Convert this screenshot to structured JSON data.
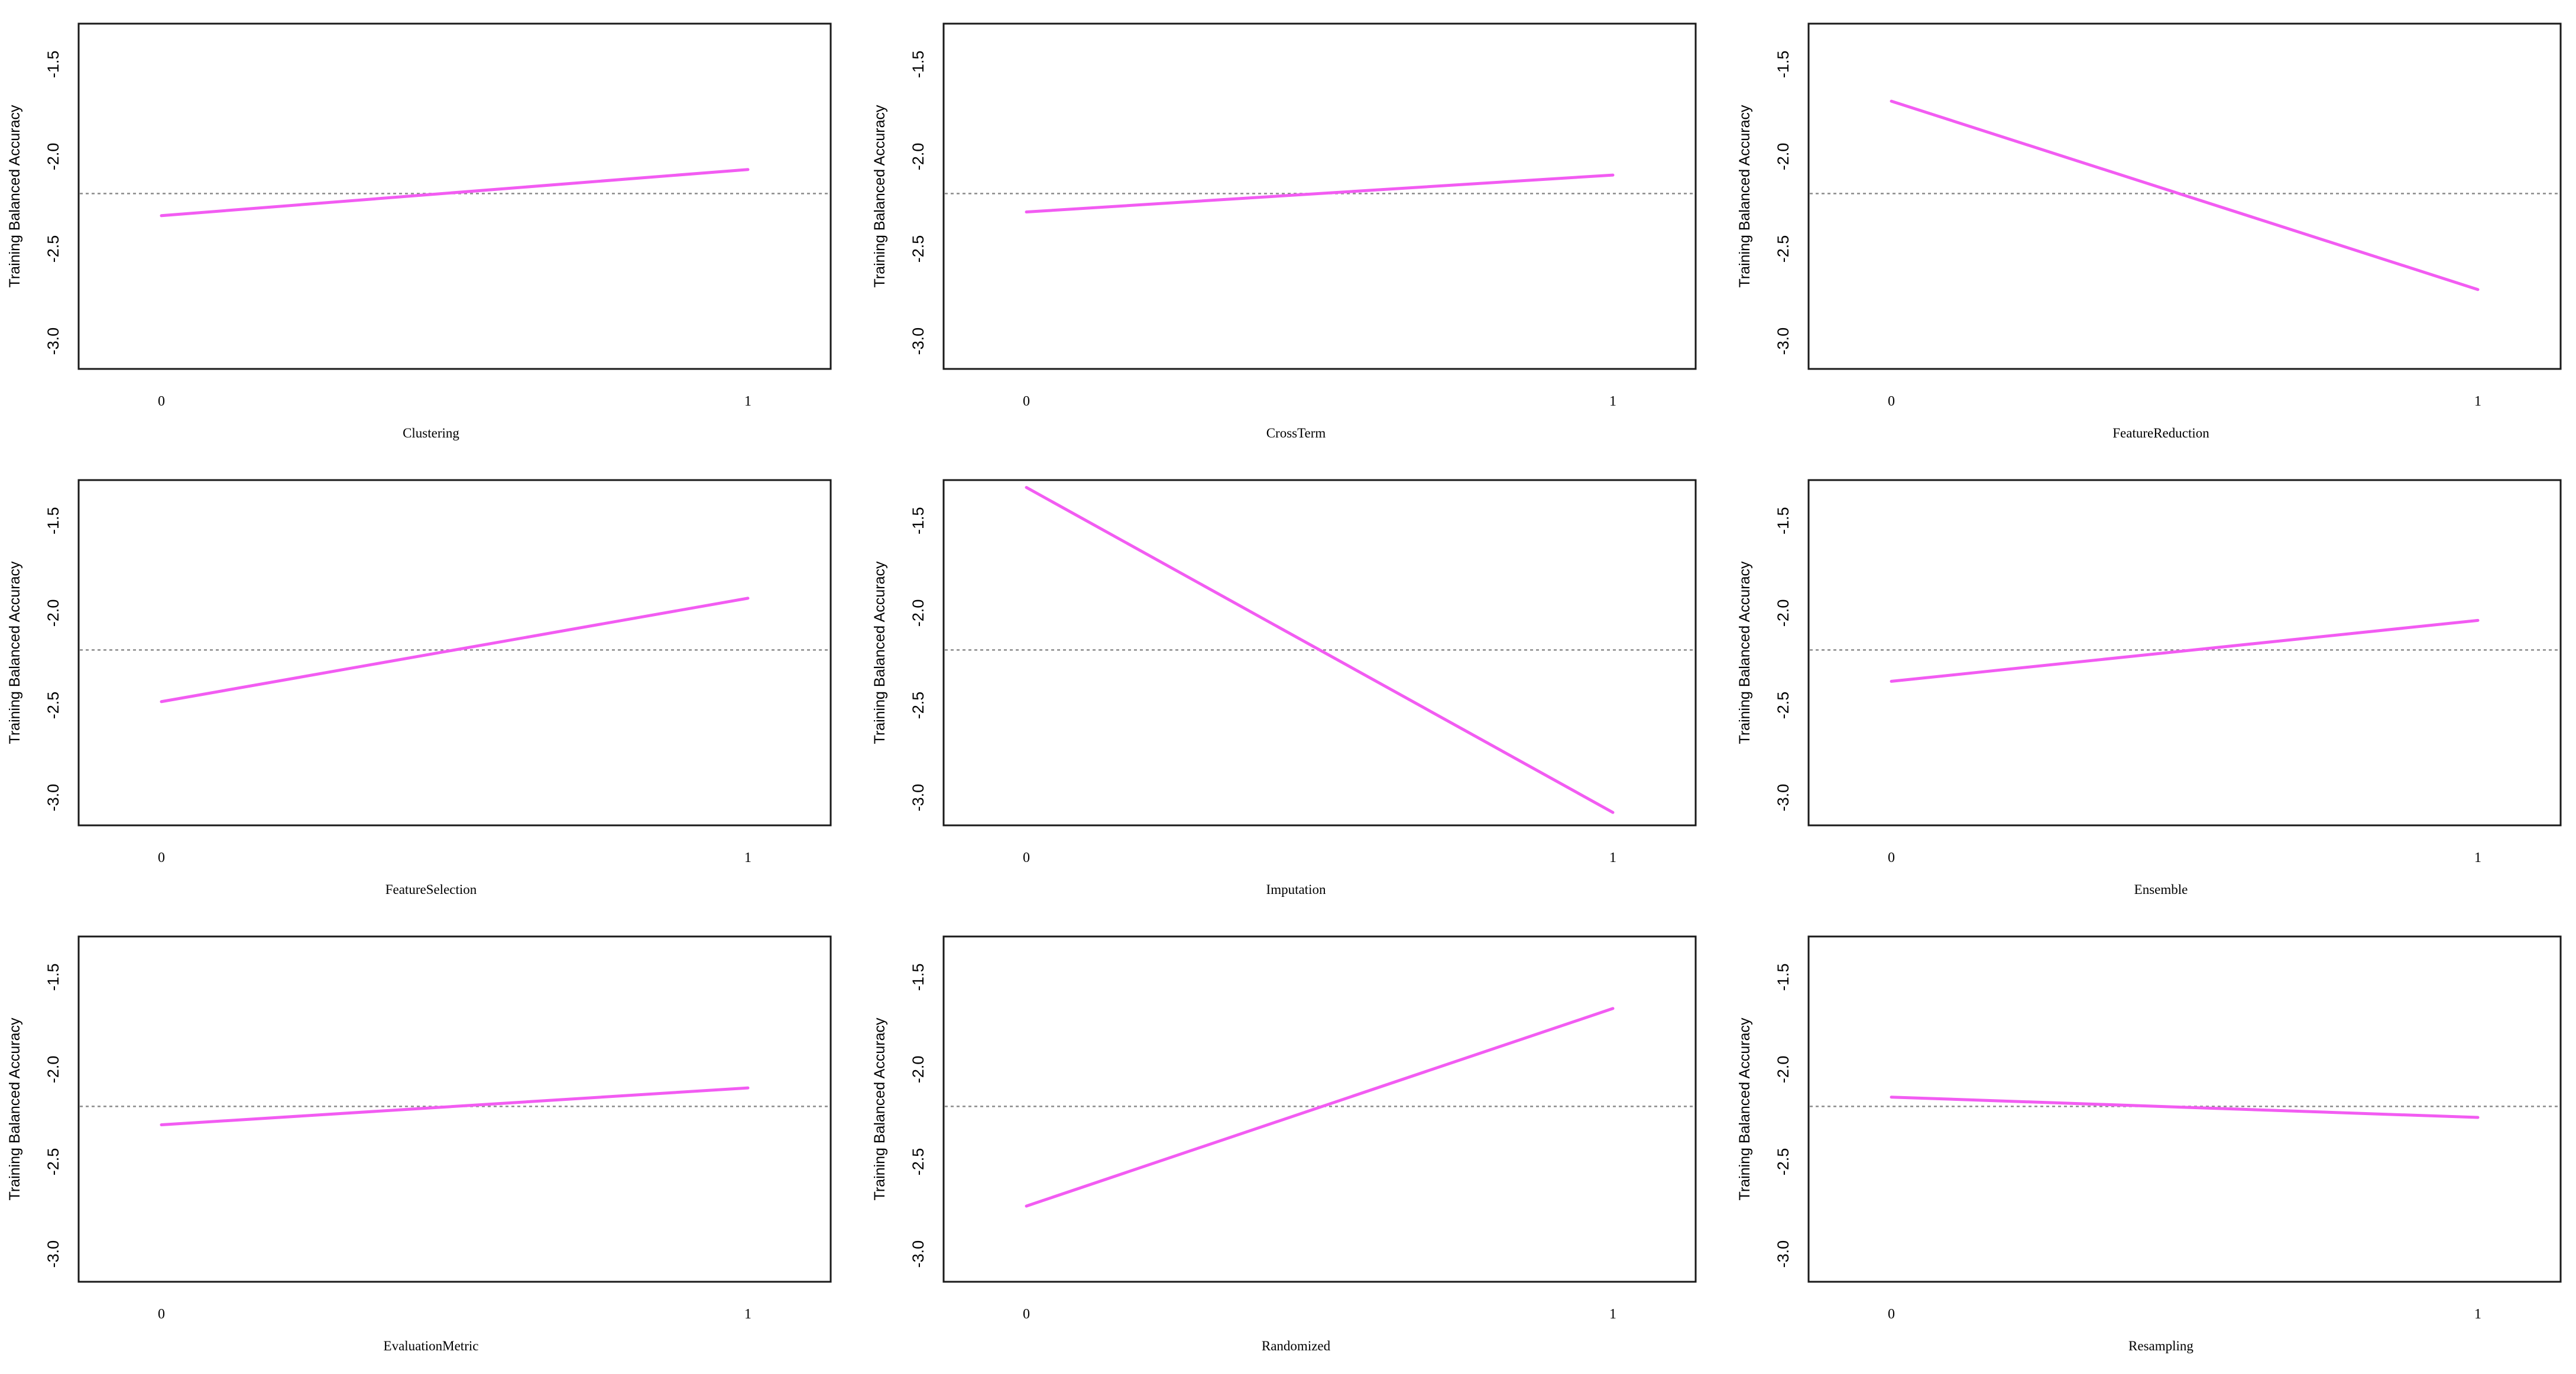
{
  "colors": {
    "effect_line": "#f25cf2",
    "reference_line": "#8c8c8c",
    "frame": "#1a1a1a"
  },
  "chart_data": [
    {
      "type": "line",
      "xlabel": "Clustering",
      "ylabel": "Training Balanced Accuracy",
      "x": [
        0,
        1
      ],
      "y": [
        -2.32,
        -2.07
      ],
      "reference_y": -2.2,
      "xticks": [
        "0",
        "1"
      ],
      "yticks": [
        "-1.5",
        "-2.0",
        "-2.5",
        "-3.0"
      ],
      "ylim": [
        -3.15,
        -1.28
      ],
      "grid": false
    },
    {
      "type": "line",
      "xlabel": "CrossTerm",
      "ylabel": "Training Balanced Accuracy",
      "x": [
        0,
        1
      ],
      "y": [
        -2.3,
        -2.1
      ],
      "reference_y": -2.2,
      "xticks": [
        "0",
        "1"
      ],
      "yticks": [
        "-1.5",
        "-2.0",
        "-2.5",
        "-3.0"
      ],
      "ylim": [
        -3.15,
        -1.28
      ],
      "grid": false
    },
    {
      "type": "line",
      "xlabel": "FeatureReduction",
      "ylabel": "Training Balanced Accuracy",
      "x": [
        0,
        1
      ],
      "y": [
        -1.7,
        -2.72
      ],
      "reference_y": -2.2,
      "xticks": [
        "0",
        "1"
      ],
      "yticks": [
        "-1.5",
        "-2.0",
        "-2.5",
        "-3.0"
      ],
      "ylim": [
        -3.15,
        -1.28
      ],
      "grid": false
    },
    {
      "type": "line",
      "xlabel": "FeatureSelection",
      "ylabel": "Training Balanced Accuracy",
      "x": [
        0,
        1
      ],
      "y": [
        -2.48,
        -1.92
      ],
      "reference_y": -2.2,
      "xticks": [
        "0",
        "1"
      ],
      "yticks": [
        "-1.5",
        "-2.0",
        "-2.5",
        "-3.0"
      ],
      "ylim": [
        -3.15,
        -1.28
      ],
      "grid": false
    },
    {
      "type": "line",
      "xlabel": "Imputation",
      "ylabel": "Training Balanced Accuracy",
      "x": [
        0,
        1
      ],
      "y": [
        -1.32,
        -3.08
      ],
      "reference_y": -2.2,
      "xticks": [
        "0",
        "1"
      ],
      "yticks": [
        "-1.5",
        "-2.0",
        "-2.5",
        "-3.0"
      ],
      "ylim": [
        -3.15,
        -1.28
      ],
      "grid": false
    },
    {
      "type": "line",
      "xlabel": "Ensemble",
      "ylabel": "Training Balanced Accuracy",
      "x": [
        0,
        1
      ],
      "y": [
        -2.37,
        -2.04
      ],
      "reference_y": -2.2,
      "xticks": [
        "0",
        "1"
      ],
      "yticks": [
        "-1.5",
        "-2.0",
        "-2.5",
        "-3.0"
      ],
      "ylim": [
        -3.15,
        -1.28
      ],
      "grid": false
    },
    {
      "type": "line",
      "xlabel": "EvaluationMetric",
      "ylabel": "Training Balanced Accuracy",
      "x": [
        0,
        1
      ],
      "y": [
        -2.3,
        -2.1
      ],
      "reference_y": -2.2,
      "xticks": [
        "0",
        "1"
      ],
      "yticks": [
        "-1.5",
        "-2.0",
        "-2.5",
        "-3.0"
      ],
      "ylim": [
        -3.15,
        -1.28
      ],
      "grid": false
    },
    {
      "type": "line",
      "xlabel": "Randomized",
      "ylabel": "Training Balanced Accuracy",
      "x": [
        0,
        1
      ],
      "y": [
        -2.74,
        -1.67
      ],
      "reference_y": -2.2,
      "xticks": [
        "0",
        "1"
      ],
      "yticks": [
        "-1.5",
        "-2.0",
        "-2.5",
        "-3.0"
      ],
      "ylim": [
        -3.15,
        -1.28
      ],
      "grid": false
    },
    {
      "type": "line",
      "xlabel": "Resampling",
      "ylabel": "Training Balanced Accuracy",
      "x": [
        0,
        1
      ],
      "y": [
        -2.15,
        -2.26
      ],
      "reference_y": -2.2,
      "xticks": [
        "0",
        "1"
      ],
      "yticks": [
        "-1.5",
        "-2.0",
        "-2.5",
        "-3.0"
      ],
      "ylim": [
        -3.15,
        -1.28
      ],
      "grid": false
    }
  ]
}
